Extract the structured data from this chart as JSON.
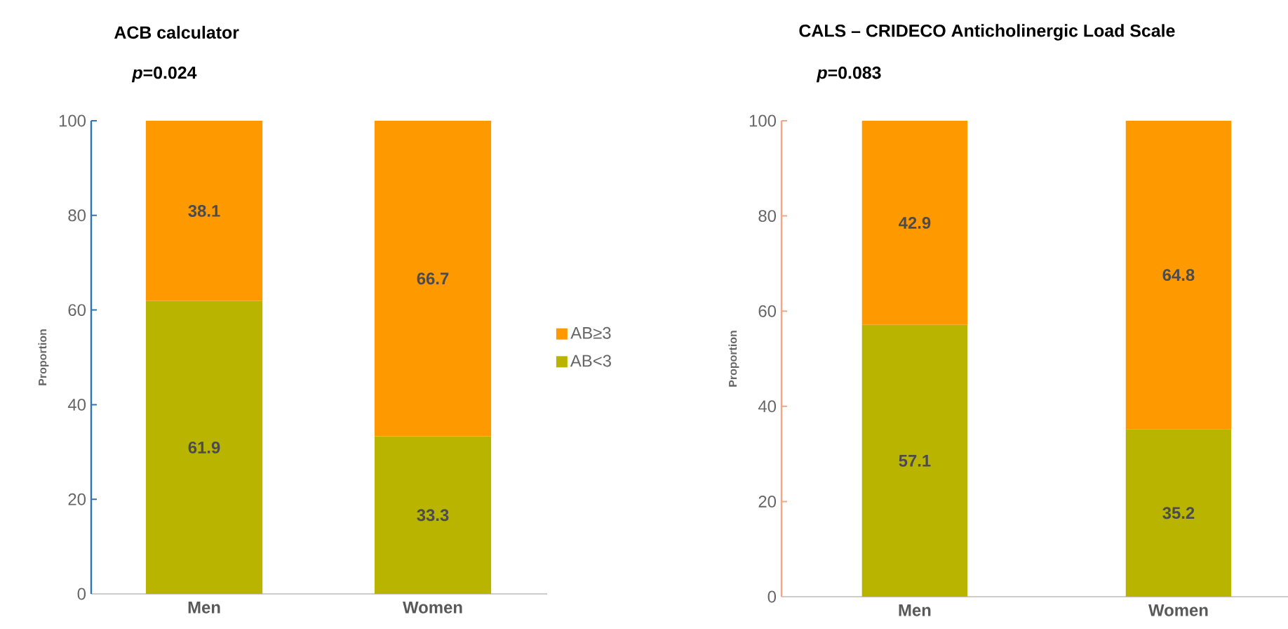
{
  "chart_data": [
    {
      "type": "bar",
      "title": "ACB calculator",
      "subtitle": "*p*=0.024",
      "ylabel": "Proportion",
      "categories": [
        "Men",
        "Women"
      ],
      "stacked": true,
      "data_labels": true,
      "legend": "right",
      "ylim": [
        0,
        100
      ],
      "yticks": [
        0,
        20,
        40,
        60,
        80,
        100
      ],
      "series": [
        {
          "name": "AB<3",
          "color": "#b8b400",
          "values": [
            61.9,
            33.3
          ]
        },
        {
          "name": "AB≥3",
          "color": "#ff9900",
          "values": [
            38.1,
            66.7
          ]
        }
      ]
    },
    {
      "type": "bar",
      "title": "CALS – CRIDECO Anticholinergic Load Scale",
      "subtitle": "*p*=0.083",
      "ylabel": "Proportion",
      "categories": [
        "Men",
        "Women"
      ],
      "stacked": true,
      "data_labels": true,
      "ylim": [
        0,
        100
      ],
      "yticks": [
        0,
        20,
        40,
        60,
        80,
        100
      ],
      "series": [
        {
          "color": "#b8b400",
          "values": [
            57.1,
            35.2
          ]
        },
        {
          "color": "#ff9900",
          "values": [
            42.9,
            64.8
          ]
        }
      ]
    }
  ]
}
